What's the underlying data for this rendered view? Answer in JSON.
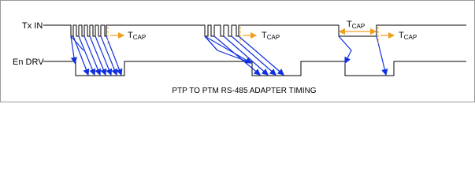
{
  "signals": {
    "tx_in": "Tx IN",
    "en_drv": "En DRV"
  },
  "annotations": [
    {
      "main": "T",
      "sub": "CAP"
    },
    {
      "main": "T",
      "sub": "CAP"
    },
    {
      "main": "T",
      "sub": "CAP"
    },
    {
      "main": "T",
      "sub": "CAP"
    }
  ],
  "caption": "PTP TO PTM RS-485 ADAPTER TIMING"
}
